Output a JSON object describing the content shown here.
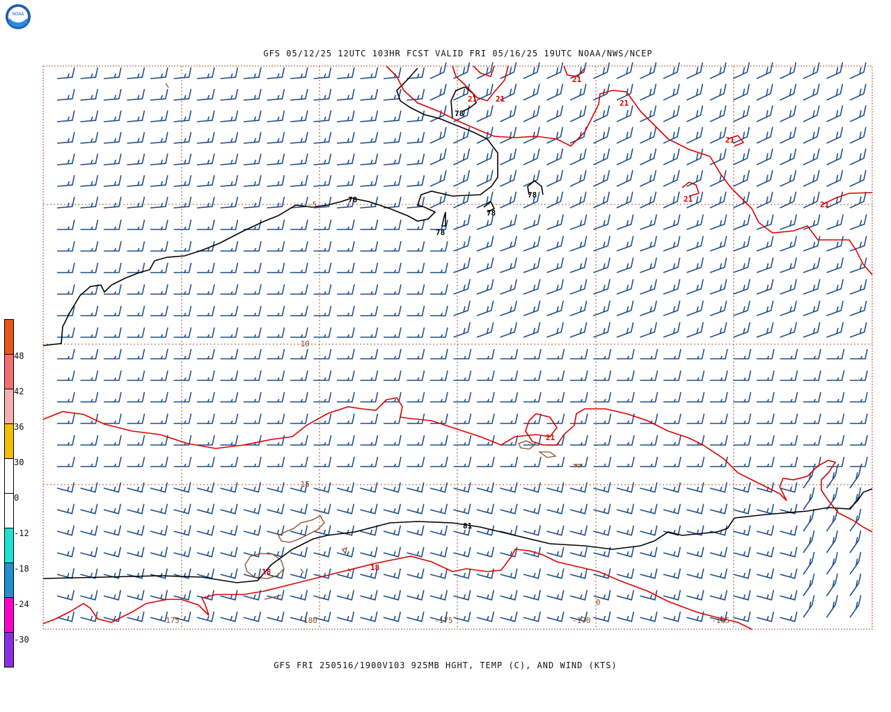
{
  "header": {
    "logo_icon": "noaa-logo-icon",
    "top_title": "GFS 05/12/25 12UTC 103HR FCST VALID FRI 05/16/25 19UTC NOAA/NWS/NCEP",
    "bottom_title": "GFS FRI 250516/1900V103 925MB HGHT, TEMP (C), AND WIND (KTS)"
  },
  "map": {
    "latitude_labels": [
      "-5",
      "-10",
      "-15"
    ],
    "longitude_labels": [
      "175",
      "180",
      "-175",
      "-170",
      "-165"
    ],
    "height_contour_labels": [
      "78",
      "78",
      "78",
      "78",
      "78",
      "81"
    ],
    "temperature_contour_labels": [
      "21",
      "21",
      "21",
      "21",
      "21",
      "21",
      "21",
      "21",
      "18",
      "18"
    ],
    "misc_labels": [
      "0"
    ],
    "colors": {
      "height_contour": "#000000",
      "temperature_contour": "#dd0000",
      "wind_barbs": "#1f4f8a",
      "coastline": "#8b4a2a",
      "grid": "#a05030"
    }
  },
  "color_scale": {
    "labels": [
      "48",
      "42",
      "36",
      "30",
      "0",
      "-12",
      "-18",
      "-24",
      "-30"
    ],
    "colors": [
      "#e8561a",
      "#f07070",
      "#f5b0b0",
      "#f0c000",
      "#ffffff",
      "#ffffff",
      "#20e0d0",
      "#2090d0",
      "#ff00cc",
      "#8a30e0"
    ]
  }
}
